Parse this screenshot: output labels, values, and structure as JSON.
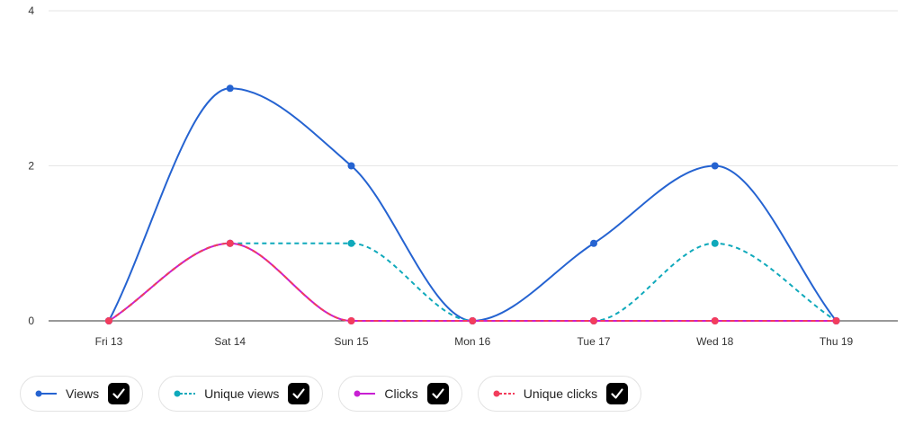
{
  "chart_data": {
    "type": "line",
    "title": "",
    "xlabel": "",
    "ylabel": "",
    "categories": [
      "Fri 13",
      "Sat 14",
      "Sun 15",
      "Mon 16",
      "Tue 17",
      "Wed 18",
      "Thu 19"
    ],
    "ylim": [
      0,
      4
    ],
    "yticks": [
      0,
      2,
      4
    ],
    "grid": true,
    "legend_position": "bottom",
    "series": [
      {
        "name": "Views",
        "values": [
          0,
          3,
          2,
          0,
          1,
          2,
          0
        ],
        "color": "#2563d1",
        "dashed": false,
        "checked": true
      },
      {
        "name": "Unique views",
        "values": [
          0,
          1,
          1,
          0,
          0,
          1,
          0
        ],
        "color": "#0fa9bb",
        "dashed": true,
        "checked": true
      },
      {
        "name": "Clicks",
        "values": [
          0,
          1,
          0,
          0,
          0,
          0,
          0
        ],
        "color": "#c81fd3",
        "dashed": false,
        "checked": true
      },
      {
        "name": "Unique clicks",
        "values": [
          0,
          1,
          0,
          0,
          0,
          0,
          0
        ],
        "color": "#f23d5c",
        "dashed": true,
        "checked": true
      }
    ]
  }
}
